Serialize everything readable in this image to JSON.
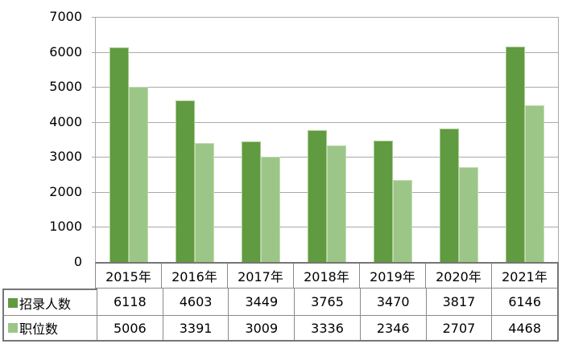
{
  "chart_data": {
    "type": "bar",
    "title": "",
    "xlabel": "",
    "ylabel": "",
    "categories": [
      "2015年",
      "2016年",
      "2017年",
      "2018年",
      "2019年",
      "2020年",
      "2021年"
    ],
    "series": [
      {
        "name": "招录人数",
        "values": [
          6118,
          4603,
          3449,
          3765,
          3470,
          3817,
          6146
        ],
        "color": "#609A41",
        "border_color": "#A9CB8D"
      },
      {
        "name": "职位数",
        "values": [
          5006,
          3391,
          3009,
          3336,
          2346,
          2707,
          4468
        ],
        "color": "#9CC687",
        "border_color": "#C2DCB0"
      }
    ],
    "ylim": [
      0,
      7000
    ],
    "ytick_step": 1000,
    "yticks": [
      "7000",
      "6000",
      "5000",
      "4000",
      "3000",
      "2000",
      "1000",
      "0"
    ],
    "grid": true,
    "legend_position": "data-table-left-column"
  },
  "colors": {
    "background": "#FFFFFF",
    "gridline": "#A9A9A9",
    "plot_border": "#A9A9A9",
    "table_border_outer": "#767676",
    "table_border_inner": "#8A8A8A",
    "text": "#000000"
  }
}
